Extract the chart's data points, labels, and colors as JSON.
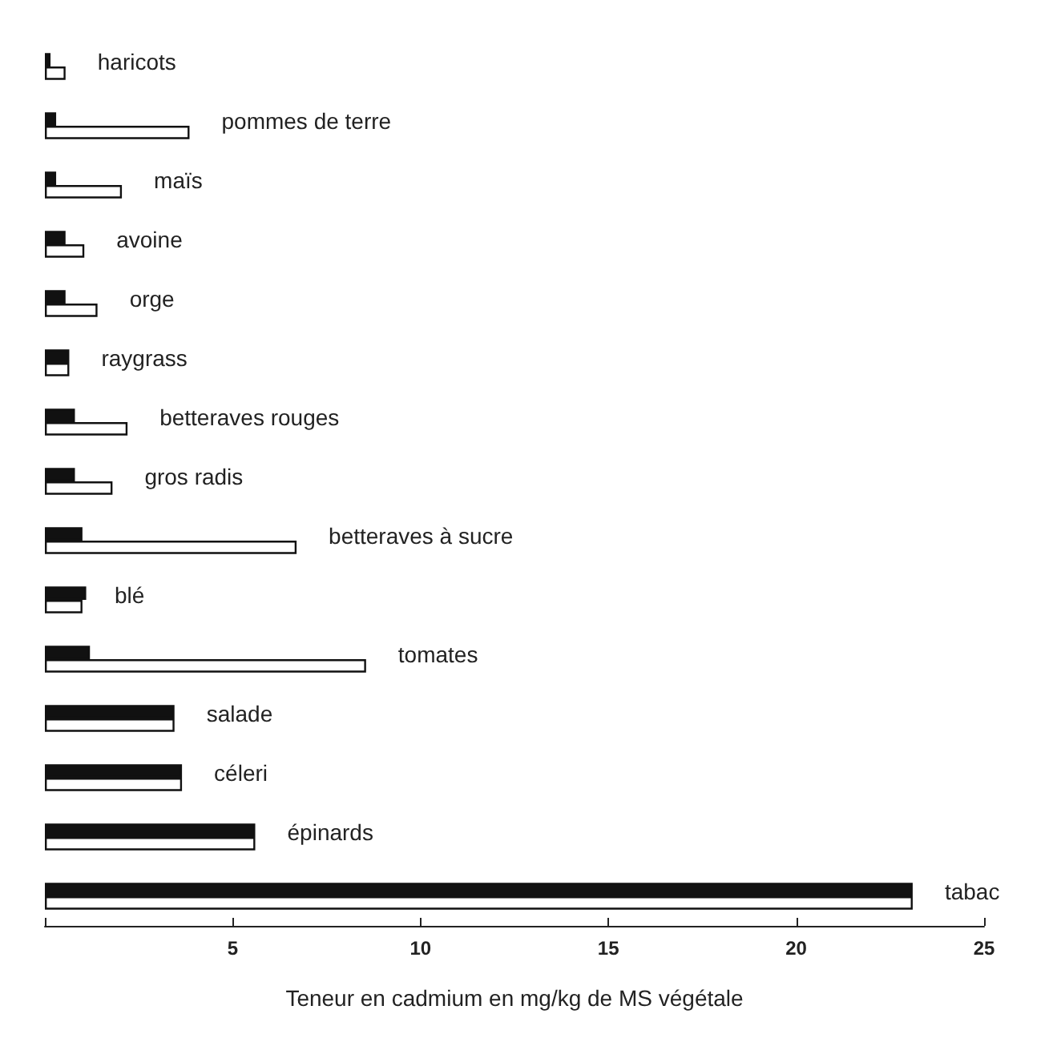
{
  "chart_data": {
    "type": "bar",
    "orientation": "horizontal",
    "xlabel": "Teneur en cadmium en mg/kg de MS végétale",
    "categories": [
      "haricots",
      "pommes de terre",
      "maïs",
      "avoine",
      "orge",
      "raygrass",
      "betteraves rouges",
      "gros radis",
      "betteraves à sucre",
      "blé",
      "tomates",
      "salade",
      "céleri",
      "épinards",
      "tabac"
    ],
    "series": [
      {
        "color": "#111111",
        "values": [
          0.15,
          0.3,
          0.3,
          0.55,
          0.55,
          0.65,
          0.8,
          0.8,
          1.0,
          1.1,
          1.2,
          3.45,
          3.65,
          5.6,
          23.1
        ]
      },
      {
        "color": "#ffffff",
        "values": [
          0.55,
          3.85,
          2.05,
          1.05,
          1.4,
          0.65,
          2.2,
          1.8,
          6.7,
          1.0,
          8.55,
          3.45,
          3.65,
          5.6,
          23.1
        ]
      }
    ],
    "xlim": [
      0,
      25
    ],
    "xticks": [
      {
        "value": 0,
        "label": null
      },
      5,
      10,
      15,
      20,
      25
    ]
  }
}
